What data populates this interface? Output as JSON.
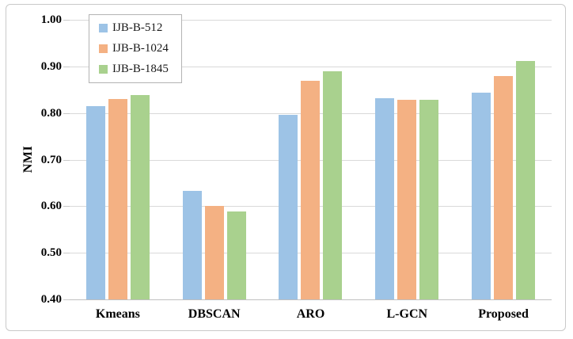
{
  "chart_data": {
    "type": "bar",
    "title": "",
    "xlabel": "",
    "ylabel": "NMI",
    "categories": [
      "Kmeans",
      "DBSCAN",
      "ARO",
      "L-GCN",
      "Proposed"
    ],
    "series": [
      {
        "name": "IJB-B-512",
        "color": "#9dc3e6",
        "values": [
          0.815,
          0.633,
          0.796,
          0.832,
          0.844
        ]
      },
      {
        "name": "IJB-B-1024",
        "color": "#f4b183",
        "values": [
          0.83,
          0.601,
          0.869,
          0.828,
          0.879
        ]
      },
      {
        "name": "IJB-B-1845",
        "color": "#a9d18e",
        "values": [
          0.838,
          0.589,
          0.89,
          0.829,
          0.912
        ]
      }
    ],
    "ylim": [
      0.4,
      1.0
    ],
    "ytick_labels": [
      "1.00",
      "0.90",
      "0.80",
      "0.70",
      "0.60",
      "0.50",
      "0.40"
    ],
    "grid": true,
    "legend_position": "top-left",
    "colors": {
      "gridline": "#d9d9d9",
      "axis_line": "#bfbfbf",
      "figure_border": "#c9c9c9",
      "legend_border": "#b3b3b3",
      "text": "#000000"
    }
  }
}
